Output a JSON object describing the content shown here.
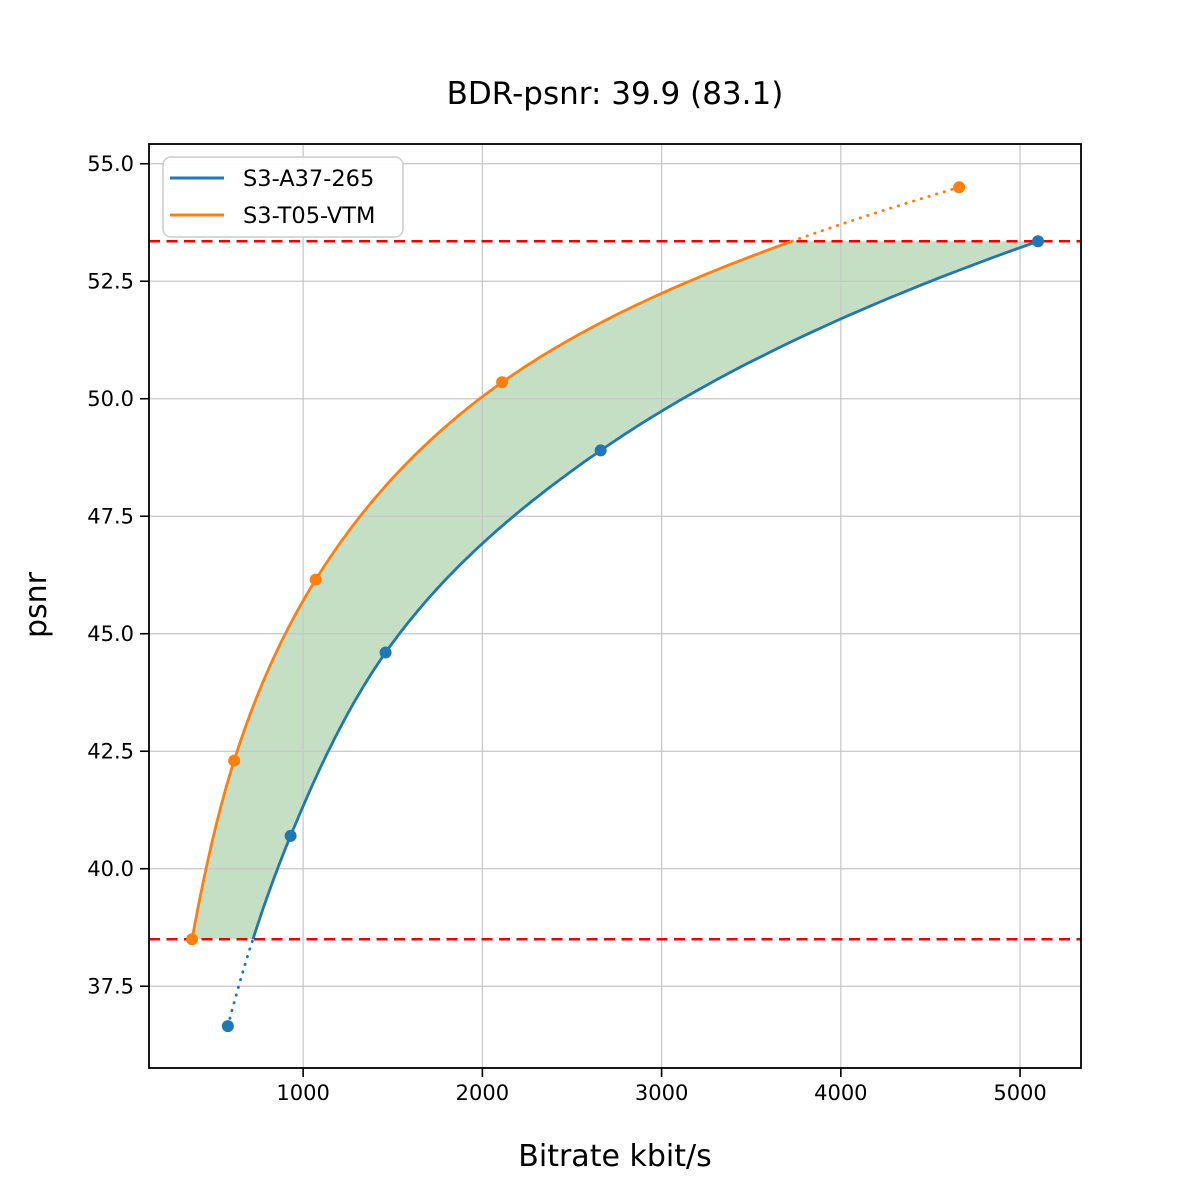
{
  "title": "BDR-psnr: 39.9 (83.1)",
  "chart_data": {
    "type": "line",
    "title": "BDR-psnr: 39.9 (83.1)",
    "xlabel": "Bitrate kbit/s",
    "ylabel": "psnr",
    "xlim": [
      140,
      5340
    ],
    "ylim": [
      35.76,
      55.42
    ],
    "xticks": [
      1000,
      2000,
      3000,
      4000,
      5000
    ],
    "yticks": [
      37.5,
      40.0,
      42.5,
      45.0,
      47.5,
      50.0,
      52.5,
      55.0
    ],
    "grid": true,
    "grid_color": "#c6c6c6",
    "legend_position": "upper left",
    "series": [
      {
        "name": "S3-A37-265",
        "color": "#1f77b4",
        "marker": "circle",
        "points": [
          [
            580,
            36.65
          ],
          [
            930,
            40.7
          ],
          [
            1460,
            44.6
          ],
          [
            2660,
            48.9
          ],
          [
            5100,
            53.35
          ]
        ]
      },
      {
        "name": "S3-T05-VTM",
        "color": "#ff7f0e",
        "marker": "circle",
        "points": [
          [
            380,
            38.5
          ],
          [
            615,
            42.3
          ],
          [
            1070,
            46.15
          ],
          [
            2110,
            50.35
          ],
          [
            4660,
            54.5
          ]
        ]
      }
    ],
    "hlines": [
      {
        "y": 38.5,
        "color": "#f30000",
        "style": "dashed"
      },
      {
        "y": 53.35,
        "color": "#f30000",
        "style": "dashed"
      }
    ],
    "overlap_band": {
      "y_min": 38.5,
      "y_max": 53.35,
      "fill_color": "rgba(60,150,60,0.30)"
    },
    "interpolation": "pchip-on-log10-bitrate",
    "note_dotted_segments": "curve portions outside the overlap band are dotted"
  }
}
